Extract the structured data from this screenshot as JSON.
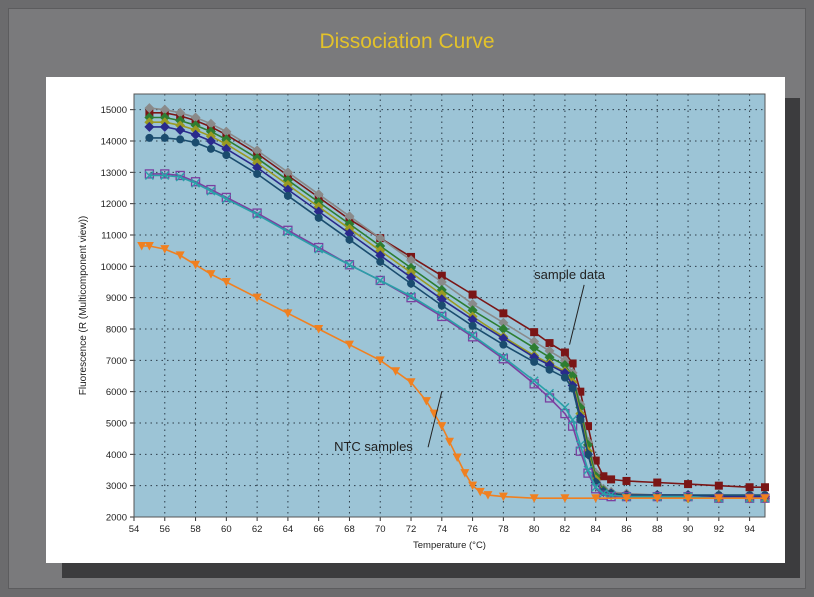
{
  "page": {
    "title": "Dissociation Curve"
  },
  "chart_data": {
    "type": "line",
    "title": "Dissociation Curve",
    "xlabel": "Temperature (°C)",
    "ylabel": "Fluorescence (R (Multicomponent view))",
    "xlim": [
      54,
      95
    ],
    "ylim": [
      2000,
      15500
    ],
    "xticks": [
      54,
      56,
      58,
      60,
      62,
      64,
      66,
      68,
      70,
      72,
      74,
      76,
      78,
      80,
      82,
      84,
      86,
      88,
      90,
      92,
      94
    ],
    "yticks": [
      2000,
      3000,
      4000,
      5000,
      6000,
      7000,
      8000,
      9000,
      10000,
      11000,
      12000,
      13000,
      14000,
      15000
    ],
    "grid": true,
    "background_color": "#9cc4d6",
    "annotations": [
      {
        "text": "sample data",
        "x": 82.3,
        "y": 7500,
        "label_x": 80,
        "label_y": 9600
      },
      {
        "text": "NTC samples",
        "x": 74,
        "y": 6000,
        "label_x": 67,
        "label_y": 4100
      }
    ],
    "series": [
      {
        "color": "#7a1616",
        "marker": "square-filled",
        "x": [
          55,
          56,
          57,
          58,
          59,
          60,
          62,
          64,
          66,
          68,
          70,
          72,
          74,
          76,
          78,
          80,
          81,
          82,
          82.5,
          83,
          83.5,
          84,
          84.5,
          85,
          86,
          88,
          90,
          92,
          94,
          95
        ],
        "values": [
          14900,
          14900,
          14800,
          14650,
          14450,
          14200,
          13600,
          12900,
          12200,
          11500,
          10900,
          10300,
          9700,
          9100,
          8500,
          7900,
          7550,
          7250,
          6900,
          6000,
          4900,
          3800,
          3300,
          3200,
          3150,
          3100,
          3050,
          3000,
          2950,
          2950
        ]
      },
      {
        "color": "#8a8a8a",
        "marker": "diamond-filled",
        "x": [
          55,
          56,
          57,
          58,
          59,
          60,
          62,
          64,
          66,
          68,
          70,
          72,
          74,
          76,
          78,
          80,
          81,
          82,
          82.5,
          83,
          83.5,
          84,
          84.5,
          85,
          86,
          88,
          90,
          92,
          94,
          95
        ],
        "values": [
          15050,
          15000,
          14900,
          14750,
          14550,
          14300,
          13700,
          13000,
          12300,
          11600,
          10900,
          10200,
          9500,
          8800,
          8200,
          7600,
          7300,
          7000,
          6600,
          5600,
          4400,
          3400,
          2900,
          2800,
          2750,
          2700,
          2700,
          2650,
          2650,
          2650
        ]
      },
      {
        "color": "#2e7d32",
        "marker": "diamond-filled",
        "x": [
          55,
          56,
          57,
          58,
          59,
          60,
          62,
          64,
          66,
          68,
          70,
          72,
          74,
          76,
          78,
          80,
          81,
          82,
          82.5,
          83,
          83.5,
          84,
          84.5,
          85,
          86,
          88,
          90,
          92,
          94,
          95
        ],
        "values": [
          14750,
          14750,
          14650,
          14500,
          14300,
          14050,
          13450,
          12750,
          12050,
          11350,
          10650,
          9950,
          9250,
          8600,
          8000,
          7400,
          7100,
          6850,
          6500,
          5500,
          4300,
          3300,
          2850,
          2750,
          2700,
          2650,
          2650,
          2600,
          2600,
          2600
        ]
      },
      {
        "color": "#9a9a22",
        "marker": "diamond-filled",
        "x": [
          55,
          56,
          57,
          58,
          59,
          60,
          62,
          64,
          66,
          68,
          70,
          72,
          74,
          76,
          78,
          80,
          81,
          82,
          82.5,
          83,
          83.5,
          84,
          84.5,
          85,
          86,
          88,
          90,
          92,
          94,
          95
        ],
        "values": [
          14600,
          14600,
          14500,
          14350,
          14150,
          13900,
          13300,
          12600,
          11900,
          11200,
          10500,
          9800,
          9100,
          8400,
          7750,
          7150,
          6900,
          6650,
          6300,
          5300,
          4100,
          3200,
          2800,
          2700,
          2650,
          2650,
          2600,
          2600,
          2600,
          2600
        ]
      },
      {
        "color": "#2a2a8c",
        "marker": "diamond-filled",
        "x": [
          55,
          56,
          57,
          58,
          59,
          60,
          62,
          64,
          66,
          68,
          70,
          72,
          74,
          76,
          78,
          80,
          81,
          82,
          82.5,
          83,
          83.5,
          84,
          84.5,
          85,
          86,
          88,
          90,
          92,
          94,
          95
        ],
        "values": [
          14450,
          14450,
          14350,
          14200,
          14000,
          13750,
          13150,
          12450,
          11750,
          11050,
          10350,
          9650,
          8950,
          8300,
          7700,
          7100,
          6850,
          6600,
          6200,
          5200,
          4000,
          3100,
          2800,
          2750,
          2700,
          2700,
          2700,
          2650,
          2650,
          2650
        ]
      },
      {
        "color": "#1a4c6e",
        "marker": "circle-filled",
        "x": [
          55,
          56,
          57,
          58,
          59,
          60,
          62,
          64,
          66,
          68,
          70,
          72,
          74,
          76,
          78,
          80,
          81,
          82,
          82.5,
          83,
          83.5,
          84,
          84.5,
          85,
          86,
          88,
          90,
          92,
          94,
          95
        ],
        "values": [
          14100,
          14100,
          14050,
          13950,
          13750,
          13550,
          12950,
          12250,
          11550,
          10850,
          10150,
          9450,
          8750,
          8100,
          7500,
          6950,
          6700,
          6450,
          6100,
          5100,
          4000,
          3100,
          2800,
          2750,
          2700,
          2700,
          2700,
          2700,
          2700,
          2700
        ]
      },
      {
        "color": "#7b3fa0",
        "marker": "square-open",
        "x": [
          55,
          56,
          57,
          58,
          59,
          60,
          62,
          64,
          66,
          68,
          70,
          72,
          74,
          76,
          78,
          80,
          81,
          82,
          82.5,
          83,
          83.5,
          84,
          84.5,
          85,
          86,
          88,
          90,
          92,
          94,
          95
        ],
        "values": [
          12950,
          12950,
          12900,
          12700,
          12450,
          12200,
          11700,
          11150,
          10600,
          10050,
          9550,
          9000,
          8400,
          7750,
          7050,
          6250,
          5800,
          5300,
          4900,
          4100,
          3400,
          2900,
          2700,
          2650,
          2650,
          2650,
          2650,
          2600,
          2600,
          2600
        ]
      },
      {
        "color": "#2aa0a8",
        "marker": "x",
        "x": [
          55,
          56,
          57,
          58,
          59,
          60,
          62,
          64,
          66,
          68,
          70,
          72,
          74,
          76,
          78,
          80,
          81,
          82,
          82.5,
          83,
          83.5,
          84,
          84.5,
          85,
          86,
          88,
          90,
          92,
          94,
          95
        ],
        "values": [
          12900,
          12900,
          12850,
          12650,
          12400,
          12150,
          11650,
          11100,
          10550,
          10050,
          9550,
          9050,
          8450,
          7800,
          7100,
          6350,
          5950,
          5500,
          5100,
          4300,
          3500,
          2950,
          2750,
          2700,
          2650,
          2650,
          2650,
          2600,
          2600,
          2600
        ]
      },
      {
        "color": "#f08020",
        "marker": "triangle-down",
        "x": [
          54.5,
          55,
          56,
          57,
          58,
          59,
          60,
          62,
          64,
          66,
          68,
          70,
          71,
          72,
          73,
          73.5,
          74,
          74.5,
          75,
          75.5,
          76,
          76.5,
          77,
          78,
          80,
          82,
          84,
          86,
          88,
          90,
          92,
          94,
          95
        ],
        "values": [
          10650,
          10650,
          10550,
          10350,
          10050,
          9750,
          9500,
          9000,
          8500,
          8000,
          7500,
          7000,
          6650,
          6300,
          5700,
          5300,
          4900,
          4400,
          3900,
          3400,
          3000,
          2800,
          2700,
          2650,
          2600,
          2600,
          2600,
          2600,
          2600,
          2600,
          2600,
          2600,
          2600
        ]
      }
    ]
  }
}
